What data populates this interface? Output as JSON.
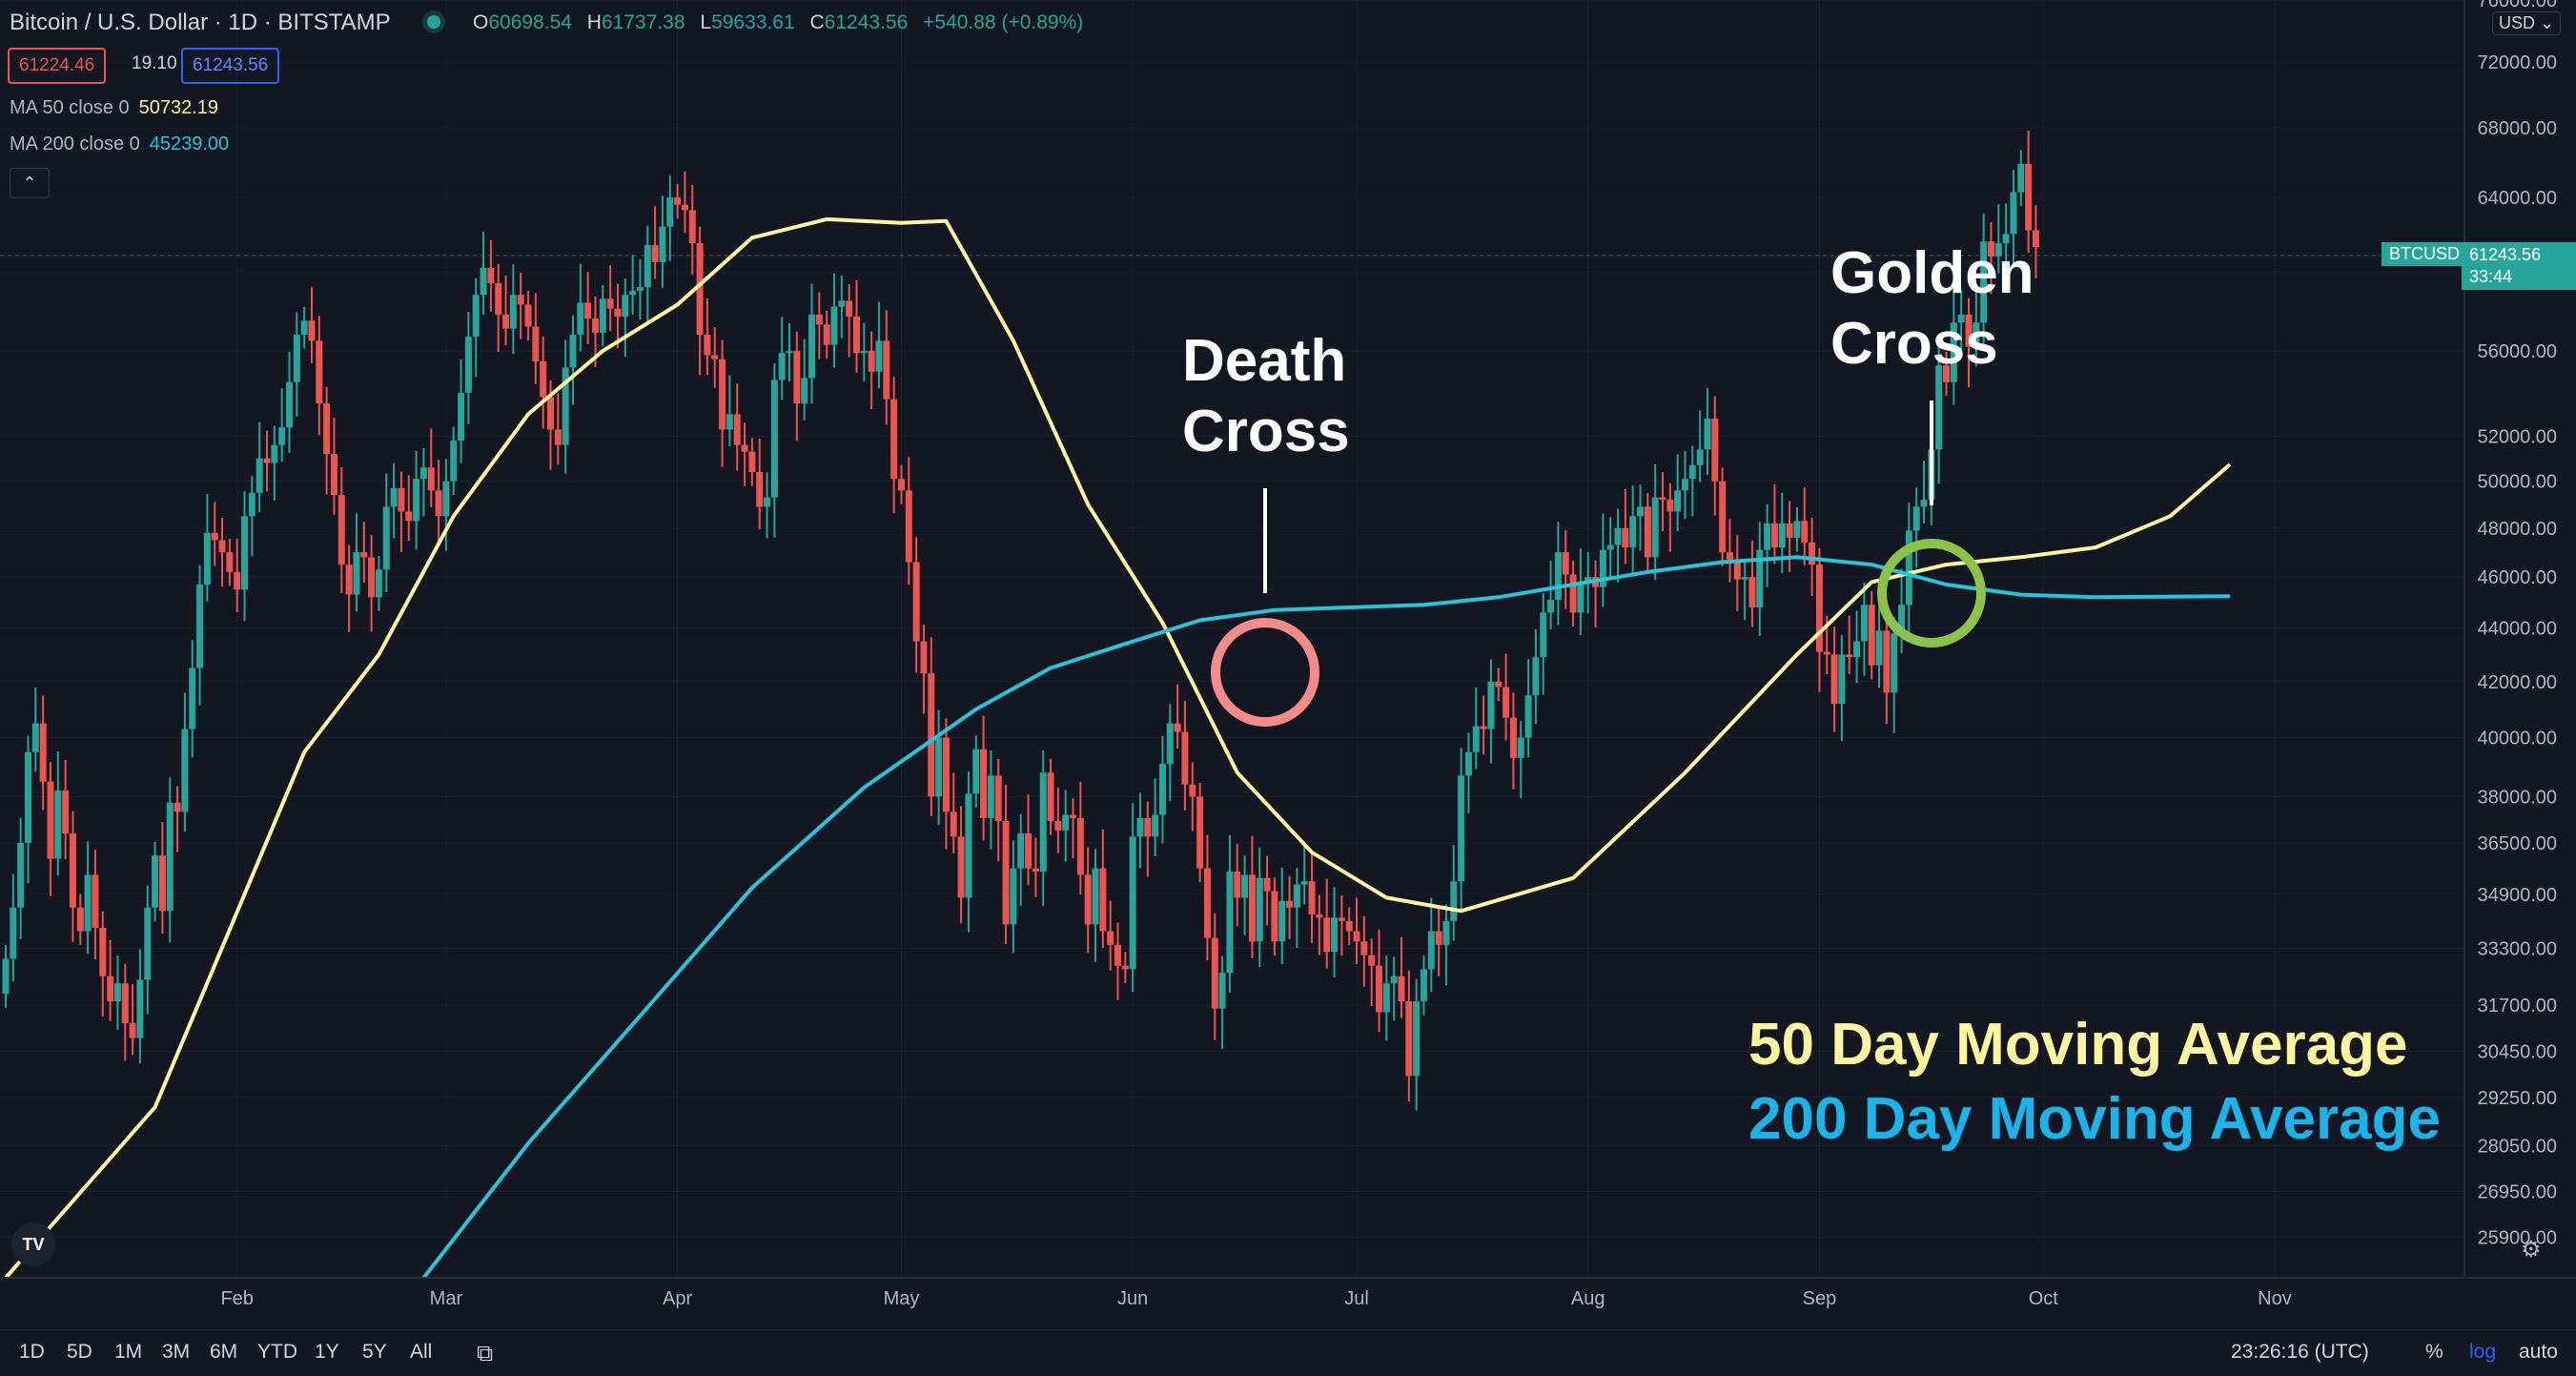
{
  "header": {
    "title": "Bitcoin / U.S. Dollar · 1D · BITSTAMP",
    "ohlc": [
      {
        "key": "O",
        "value": "60698.54"
      },
      {
        "key": "H",
        "value": "61737.38"
      },
      {
        "key": "L",
        "value": "59633.61"
      },
      {
        "key": "C",
        "value": "61243.56"
      }
    ],
    "change": "+540.88 (+0.89%)",
    "bid": "61224.46",
    "spread": "19.10",
    "ask": "61243.56"
  },
  "indicators": {
    "ma50": {
      "name": "MA 50 close 0",
      "value": "50732.19",
      "color": "#fff59d"
    },
    "ma200": {
      "name": "MA 200 close 0",
      "value": "45239.00",
      "color": "#26c6da"
    }
  },
  "price_scale": {
    "currency": "USD",
    "symbol_tag": "BTCUSD",
    "last_price": "61243.56",
    "countdown": "33:44"
  },
  "annotations": {
    "death_cross": [
      "Death",
      "Cross"
    ],
    "golden_cross": [
      "Golden",
      "Cross"
    ],
    "legend_50": "50 Day Moving Average",
    "legend_200": "200 Day Moving Average"
  },
  "timeframes": [
    "1D",
    "5D",
    "1M",
    "3M",
    "6M",
    "YTD",
    "1Y",
    "5Y",
    "All"
  ],
  "bottom_bar": {
    "time": "23:26:16 (UTC)",
    "percent": "%",
    "log": "log",
    "auto": "auto"
  },
  "chart_data": {
    "type": "candlestick",
    "title": "Bitcoin / U.S. Dollar",
    "scale": "log",
    "ylim": [
      25000,
      76000
    ],
    "y_ticks": [
      25900,
      26950,
      28050,
      29250,
      30450,
      31700,
      33300,
      34900,
      36500,
      38000,
      40000,
      42000,
      44000,
      46000,
      48000,
      50000,
      52000,
      56000,
      60000,
      64000,
      68000,
      72000,
      76000
    ],
    "x_ticks": [
      "Feb",
      "Mar",
      "Apr",
      "May",
      "Jun",
      "Jul",
      "Aug",
      "Sep",
      "Oct",
      "Nov"
    ],
    "x_tick_day_index": [
      31,
      59,
      90,
      120,
      151,
      181,
      212,
      243,
      273,
      304
    ],
    "grid": true,
    "candles": {
      "start_day_index": 0,
      "interval": "1D",
      "close": [
        33000,
        34500,
        36500,
        39500,
        40500,
        38500,
        36000,
        38200,
        36800,
        34500,
        33800,
        35500,
        33900,
        32500,
        31800,
        32300,
        31200,
        30800,
        32400,
        34500,
        36100,
        34400,
        37800,
        37500,
        40300,
        42500,
        45700,
        47800,
        47500,
        47000,
        46200,
        45500,
        48500,
        49500,
        51000,
        50800,
        51600,
        52400,
        54500,
        56800,
        57500,
        56500,
        53500,
        51200,
        49400,
        46500,
        45300,
        47000,
        46800,
        45200,
        46300,
        48900,
        49700,
        48700,
        48300,
        50100,
        50600,
        49600,
        48500,
        50000,
        51800,
        54000,
        56700,
        58800,
        60200,
        59400,
        57800,
        57100,
        58800,
        58300,
        57200,
        55500,
        53800,
        52300,
        51600,
        55200,
        56800,
        58400,
        57600,
        56900,
        58600,
        58100,
        57700,
        58800,
        59000,
        59200,
        61400,
        60500,
        62400,
        64000,
        63600,
        63300,
        61500,
        56800,
        55800,
        55600,
        52300,
        53000,
        51600,
        51300,
        50400,
        48900,
        49300,
        54600,
        55900,
        56000,
        53500,
        54700,
        57800,
        57300,
        56300,
        58200,
        58500,
        57700,
        55900,
        56000,
        55000,
        56500,
        53700,
        50100,
        49600,
        46600,
        43500,
        42300,
        38000,
        40000,
        37500,
        36700,
        34800,
        38100,
        39600,
        37300,
        38700,
        37200,
        34000,
        35700,
        36800,
        35700,
        35600,
        38800,
        37200,
        36900,
        37400,
        37300,
        35500,
        34000,
        35700,
        33800,
        33400,
        32800,
        32700,
        36700,
        37300,
        36700,
        37400,
        39100,
        40500,
        40200,
        38400,
        38000,
        35700,
        33600,
        31600,
        32600,
        35600,
        34800,
        35500,
        33500,
        35400,
        35000,
        33500,
        34700,
        34500,
        35200,
        35300,
        34300,
        34200,
        33200,
        34200,
        34100,
        33800,
        33500,
        33100,
        32800,
        31500,
        32300,
        32500,
        31800,
        29800,
        31800,
        32700,
        33800,
        33400,
        34100,
        35300,
        38700,
        39500,
        40400,
        40300,
        42000,
        41800,
        40700,
        39300,
        40000,
        41500,
        42900,
        44600,
        45100,
        47000,
        46100,
        44600,
        45800,
        46000,
        45600,
        47100,
        47300,
        48000,
        47200,
        48500,
        48900,
        46800,
        49300,
        49200,
        48700,
        49600,
        50100,
        50700,
        51400,
        52800,
        50000,
        47000,
        46700,
        45900,
        46000,
        44800,
        47100,
        48200,
        47200,
        48200,
        47600,
        48300,
        47400,
        46500,
        43100,
        43000,
        41200,
        43000,
        42900,
        43500,
        44900,
        42600,
        43900,
        41600,
        43800,
        44900,
        47900,
        48900,
        49200,
        51400,
        55300,
        54500,
        57400,
        57800,
        56200,
        57400,
        61600,
        60800,
        61500,
        62000,
        64300,
        65900,
        62200,
        61300
      ],
      "note": "daily closes Jan–Oct 2021, log price scale"
    },
    "series": [
      {
        "name": "MA 50 close 0",
        "color": "#fff59d",
        "points": [
          [
            0,
            25000
          ],
          [
            20,
            29000
          ],
          [
            40,
            39500
          ],
          [
            50,
            43000
          ],
          [
            60,
            48500
          ],
          [
            70,
            53000
          ],
          [
            80,
            56000
          ],
          [
            90,
            58300
          ],
          [
            100,
            61800
          ],
          [
            110,
            62800
          ],
          [
            120,
            62600
          ],
          [
            126,
            62700
          ],
          [
            135,
            56500
          ],
          [
            145,
            49000
          ],
          [
            155,
            44200
          ],
          [
            165,
            38800
          ],
          [
            175,
            36200
          ],
          [
            185,
            34800
          ],
          [
            195,
            34400
          ],
          [
            210,
            35400
          ],
          [
            225,
            38800
          ],
          [
            240,
            43000
          ],
          [
            250,
            45800
          ],
          [
            260,
            46500
          ],
          [
            270,
            46800
          ],
          [
            280,
            47200
          ],
          [
            290,
            48500
          ],
          [
            298,
            50732
          ]
        ]
      },
      {
        "name": "MA 200 close 0",
        "color": "#26c6da",
        "points": [
          [
            56,
            25000
          ],
          [
            70,
            28100
          ],
          [
            85,
            31400
          ],
          [
            100,
            35100
          ],
          [
            115,
            38300
          ],
          [
            130,
            41000
          ],
          [
            140,
            42500
          ],
          [
            150,
            43400
          ],
          [
            160,
            44300
          ],
          [
            170,
            44700
          ],
          [
            180,
            44800
          ],
          [
            190,
            44900
          ],
          [
            200,
            45200
          ],
          [
            210,
            45700
          ],
          [
            220,
            46200
          ],
          [
            230,
            46600
          ],
          [
            240,
            46800
          ],
          [
            250,
            46500
          ],
          [
            260,
            45700
          ],
          [
            270,
            45300
          ],
          [
            280,
            45200
          ],
          [
            298,
            45239
          ]
        ]
      }
    ]
  }
}
